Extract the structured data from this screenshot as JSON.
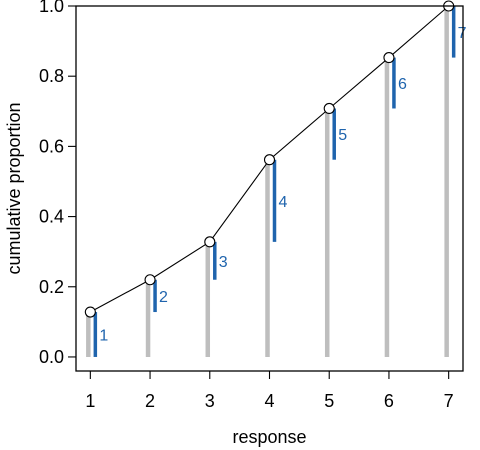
{
  "chart_data": {
    "type": "line",
    "title": "",
    "xlabel": "response",
    "ylabel": "cumulative proportion",
    "x": [
      1,
      2,
      3,
      4,
      5,
      6,
      7
    ],
    "xticks": [
      "1",
      "2",
      "3",
      "4",
      "5",
      "6",
      "7"
    ],
    "yticks": [
      "0.0",
      "0.2",
      "0.4",
      "0.6",
      "0.8",
      "1.0"
    ],
    "xlim": [
      0.76,
      7.24
    ],
    "ylim": [
      -0.04,
      1.0
    ],
    "grid": false,
    "legend": "none",
    "series": [
      {
        "values": [
          0.128,
          0.22,
          0.328,
          0.562,
          0.708,
          0.853,
          1.0
        ]
      }
    ],
    "increments": {
      "labels": [
        "1",
        "2",
        "3",
        "4",
        "5",
        "6",
        "7"
      ],
      "values": [
        0.128,
        0.092,
        0.108,
        0.234,
        0.146,
        0.145,
        0.147
      ]
    },
    "colors": {
      "cumulative_bar": "#bebebe",
      "increment_bar": "#1f64ad",
      "line": "#000000",
      "label": "#1f64ad"
    }
  }
}
